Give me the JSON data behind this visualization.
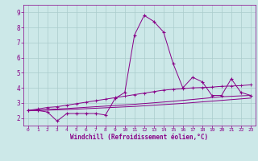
{
  "bg_color": "#cce8e8",
  "grid_color": "#aacccc",
  "line_color": "#880088",
  "xlabel": "Windchill (Refroidissement éolien,°C)",
  "xlim": [
    -0.5,
    23.5
  ],
  "ylim": [
    1.5,
    9.5
  ],
  "xticks": [
    0,
    1,
    2,
    3,
    4,
    5,
    6,
    7,
    8,
    9,
    10,
    11,
    12,
    13,
    14,
    15,
    16,
    17,
    18,
    19,
    20,
    21,
    22,
    23
  ],
  "yticks": [
    2,
    3,
    4,
    5,
    6,
    7,
    8,
    9
  ],
  "series1_x": [
    0,
    1,
    2,
    3,
    4,
    5,
    6,
    7,
    8,
    9,
    10,
    11,
    12,
    13,
    14,
    15,
    16,
    17,
    18,
    19,
    20,
    21,
    22,
    23
  ],
  "series1_y": [
    2.5,
    2.5,
    2.4,
    1.8,
    2.3,
    2.3,
    2.3,
    2.3,
    2.2,
    3.3,
    3.7,
    7.5,
    8.8,
    8.4,
    7.7,
    5.6,
    4.0,
    4.7,
    4.4,
    3.5,
    3.5,
    4.6,
    3.7,
    3.5
  ],
  "series2_x": [
    0,
    1,
    2,
    3,
    4,
    5,
    6,
    7,
    8,
    9,
    10,
    11,
    12,
    13,
    14,
    15,
    16,
    17,
    18,
    19,
    20,
    21,
    22,
    23
  ],
  "series2_y": [
    2.5,
    2.6,
    2.7,
    2.75,
    2.85,
    2.95,
    3.05,
    3.15,
    3.25,
    3.35,
    3.45,
    3.55,
    3.65,
    3.75,
    3.85,
    3.9,
    3.95,
    4.0,
    4.02,
    4.05,
    4.1,
    4.12,
    4.15,
    4.2
  ],
  "series3_x": [
    0,
    1,
    2,
    3,
    4,
    5,
    6,
    7,
    8,
    9,
    10,
    11,
    12,
    13,
    14,
    15,
    16,
    17,
    18,
    19,
    20,
    21,
    22,
    23
  ],
  "series3_y": [
    2.5,
    2.53,
    2.57,
    2.6,
    2.63,
    2.67,
    2.71,
    2.75,
    2.79,
    2.83,
    2.87,
    2.91,
    2.96,
    3.01,
    3.06,
    3.11,
    3.17,
    3.23,
    3.29,
    3.35,
    3.41,
    3.44,
    3.47,
    3.5
  ],
  "series4_x": [
    0,
    1,
    2,
    3,
    4,
    5,
    6,
    7,
    8,
    9,
    10,
    11,
    12,
    13,
    14,
    15,
    16,
    17,
    18,
    19,
    20,
    21,
    22,
    23
  ],
  "series4_y": [
    2.48,
    2.5,
    2.52,
    2.54,
    2.56,
    2.59,
    2.62,
    2.65,
    2.68,
    2.71,
    2.74,
    2.77,
    2.81,
    2.85,
    2.89,
    2.93,
    2.97,
    3.02,
    3.07,
    3.12,
    3.17,
    3.22,
    3.27,
    3.32
  ]
}
